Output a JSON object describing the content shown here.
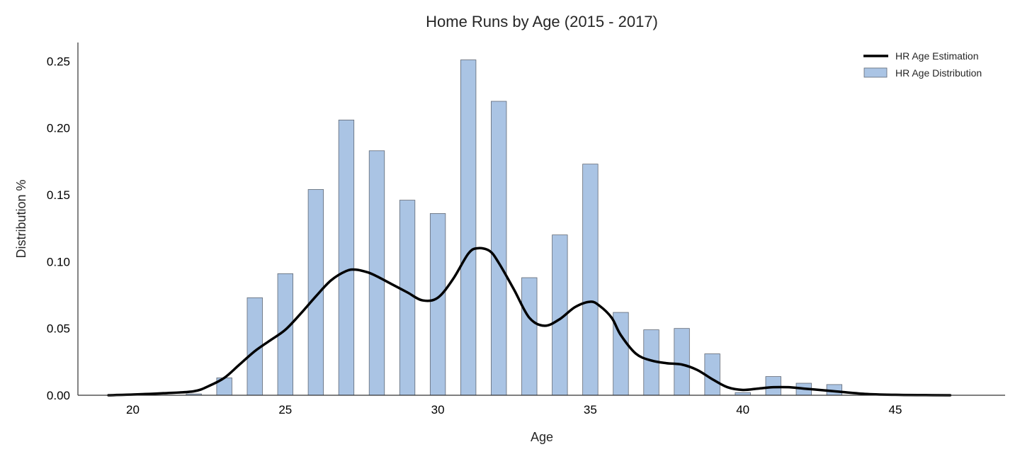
{
  "chart_data": {
    "type": "bar",
    "title": "Home Runs by Age (2015 - 2017)",
    "xlabel": "Age",
    "ylabel": "Distribution %",
    "xlim": [
      18.2,
      48.6
    ],
    "ylim": [
      0,
      0.264
    ],
    "x_ticks": [
      20,
      25,
      30,
      35,
      40,
      45
    ],
    "y_ticks": [
      "0.00",
      "0.05",
      "0.10",
      "0.15",
      "0.20",
      "0.25"
    ],
    "grid": false,
    "legend_position": "top-right",
    "bar_width": 0.5,
    "colors": {
      "bar_fill": "#aac4e4",
      "bar_edge": "#606874",
      "line": "#000000",
      "axis": "#333333"
    },
    "series": [
      {
        "name": "HR Age Distribution",
        "type": "bar",
        "x": [
          22,
          23,
          24,
          25,
          26,
          27,
          28,
          29,
          30,
          31,
          32,
          33,
          34,
          35,
          36,
          37,
          38,
          39,
          40,
          41,
          42,
          43
        ],
        "values": [
          0.001,
          0.013,
          0.073,
          0.091,
          0.154,
          0.206,
          0.183,
          0.146,
          0.136,
          0.251,
          0.22,
          0.088,
          0.12,
          0.173,
          0.062,
          0.049,
          0.05,
          0.031,
          0.002,
          0.014,
          0.009,
          0.008
        ]
      },
      {
        "name": "HR Age Estimation",
        "type": "line",
        "x": [
          19.2,
          20,
          21,
          22,
          22.5,
          23,
          23.5,
          24,
          24.5,
          25,
          25.5,
          26,
          26.5,
          27,
          27.3,
          27.7,
          28,
          28.5,
          29,
          29.5,
          30,
          30.5,
          31,
          31.3,
          31.7,
          32,
          32.5,
          33,
          33.5,
          34,
          34.5,
          35,
          35.3,
          35.7,
          36,
          36.5,
          37,
          37.5,
          38,
          38.5,
          39,
          39.5,
          40,
          40.5,
          41,
          41.5,
          42,
          43,
          44,
          45,
          46,
          46.8
        ],
        "values": [
          0.0,
          0.0005,
          0.0015,
          0.003,
          0.007,
          0.013,
          0.023,
          0.033,
          0.041,
          0.049,
          0.061,
          0.074,
          0.086,
          0.093,
          0.094,
          0.092,
          0.089,
          0.083,
          0.077,
          0.071,
          0.073,
          0.087,
          0.106,
          0.11,
          0.108,
          0.099,
          0.079,
          0.058,
          0.052,
          0.057,
          0.066,
          0.07,
          0.067,
          0.058,
          0.045,
          0.031,
          0.026,
          0.024,
          0.023,
          0.019,
          0.012,
          0.006,
          0.004,
          0.005,
          0.006,
          0.006,
          0.005,
          0.003,
          0.001,
          0.0003,
          0.0001,
          0.0
        ]
      }
    ]
  }
}
